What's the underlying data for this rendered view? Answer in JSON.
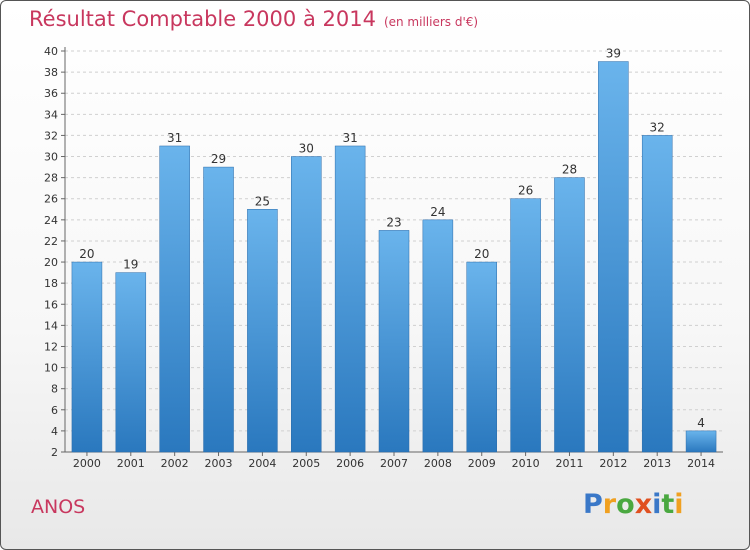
{
  "header": {
    "title": "Résultat Comptable 2000 à 2014",
    "subtitle": "(en milliers d'€)"
  },
  "footer": {
    "commune": "ANOS",
    "logo_letters": [
      {
        "ch": "P",
        "color": "#3a78c8"
      },
      {
        "ch": "r",
        "color": "#f0a020"
      },
      {
        "ch": "o",
        "color": "#4aa840"
      },
      {
        "ch": "x",
        "color": "#e05020"
      },
      {
        "ch": "i",
        "color": "#3a78c8"
      },
      {
        "ch": "t",
        "color": "#4aa840"
      },
      {
        "ch": "i",
        "color": "#f0a020"
      }
    ]
  },
  "chart_data": {
    "type": "bar",
    "title": "Résultat Comptable 2000 à 2014",
    "subtitle": "(en milliers d'€)",
    "categories": [
      "2000",
      "2001",
      "2002",
      "2003",
      "2004",
      "2005",
      "2006",
      "2007",
      "2008",
      "2009",
      "2010",
      "2011",
      "2012",
      "2013",
      "2014"
    ],
    "values": [
      20,
      19,
      31,
      29,
      25,
      30,
      31,
      23,
      24,
      20,
      26,
      28,
      39,
      32,
      4
    ],
    "ylim": [
      2,
      40
    ],
    "yticks": [
      2,
      4,
      6,
      8,
      10,
      12,
      14,
      16,
      18,
      20,
      22,
      24,
      26,
      28,
      30,
      32,
      34,
      36,
      38,
      40
    ],
    "grid": true,
    "bar_color_top": "#6ab4ec",
    "bar_color_bottom": "#2a78be"
  }
}
